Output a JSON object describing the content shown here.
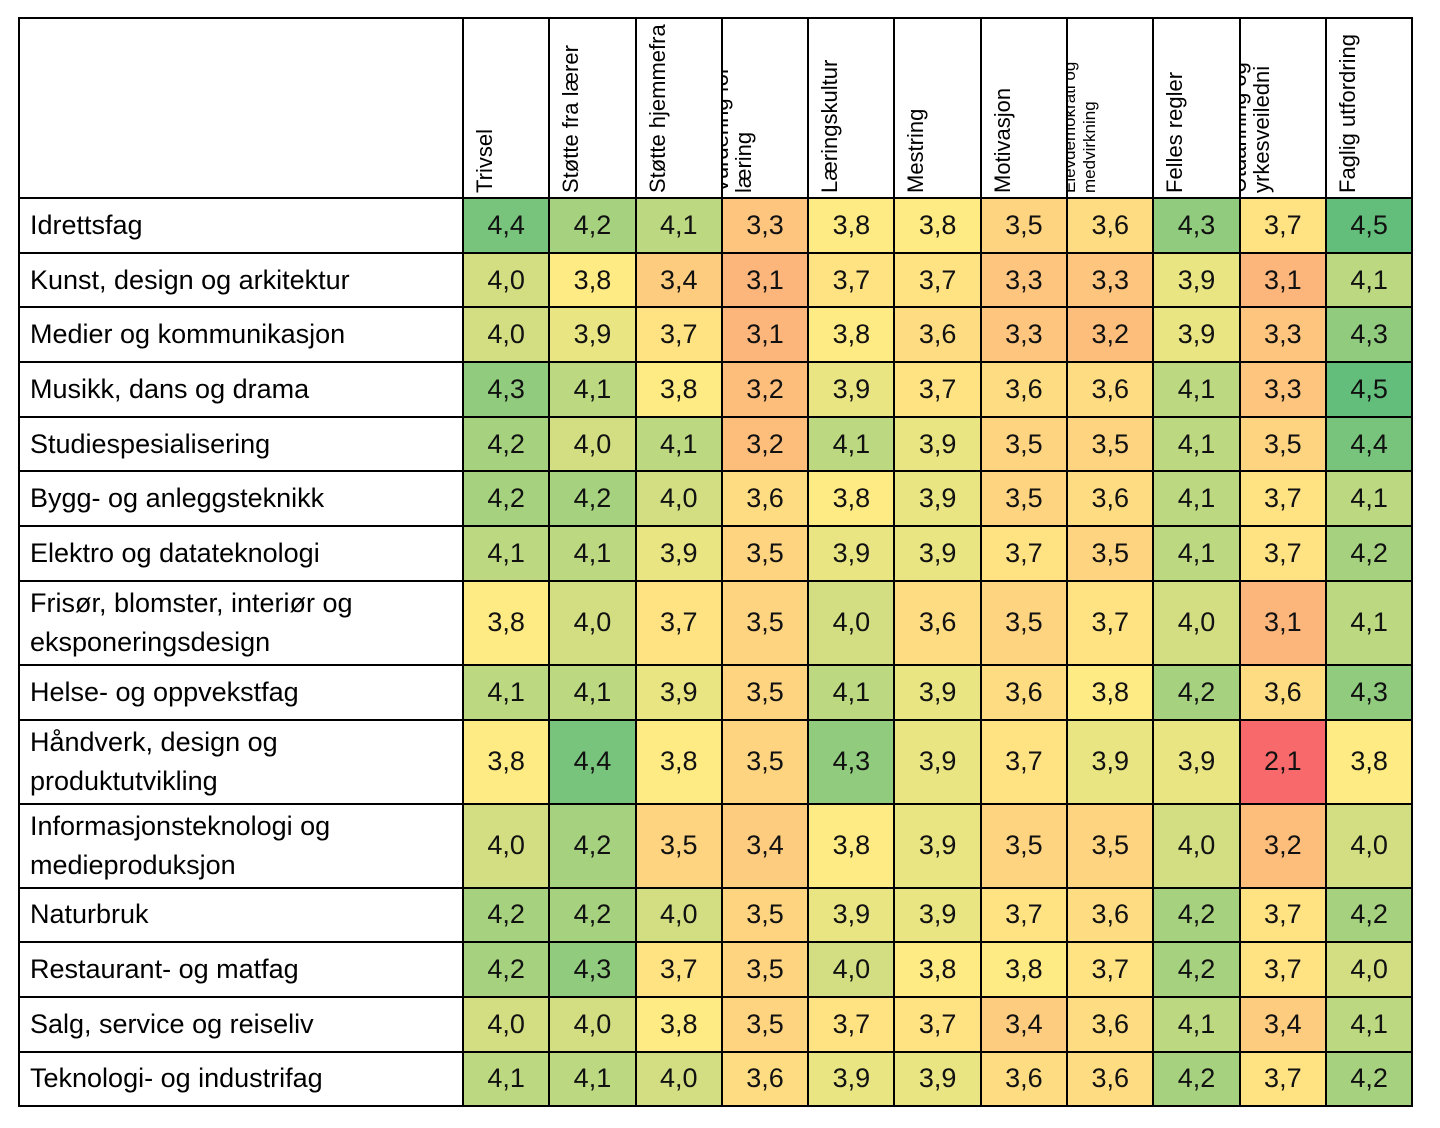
{
  "chart_data": {
    "type": "heatmap",
    "columns": [
      "Trivsel",
      "Støtte fra lærer",
      "Støtte hjemmefra",
      "Vurdering for læring",
      "Læringskultur",
      "Mestring",
      "Motivasjon",
      "Elevdemokrati og medvirkning",
      "Felles regler",
      "Utdanning og yrkesveiledni",
      "Faglig utfordring"
    ],
    "rows": [
      {
        "label": "Idrettsfag",
        "values": [
          4.4,
          4.2,
          4.1,
          3.3,
          3.8,
          3.8,
          3.5,
          3.6,
          4.3,
          3.7,
          4.5
        ]
      },
      {
        "label": "Kunst, design og arkitektur",
        "values": [
          4.0,
          3.8,
          3.4,
          3.1,
          3.7,
          3.7,
          3.3,
          3.3,
          3.9,
          3.1,
          4.1
        ]
      },
      {
        "label": "Medier og kommunikasjon",
        "values": [
          4.0,
          3.9,
          3.7,
          3.1,
          3.8,
          3.6,
          3.3,
          3.2,
          3.9,
          3.3,
          4.3
        ]
      },
      {
        "label": "Musikk, dans og drama",
        "values": [
          4.3,
          4.1,
          3.8,
          3.2,
          3.9,
          3.7,
          3.6,
          3.6,
          4.1,
          3.3,
          4.5
        ]
      },
      {
        "label": "Studiespesialisering",
        "values": [
          4.2,
          4.0,
          4.1,
          3.2,
          4.1,
          3.9,
          3.5,
          3.5,
          4.1,
          3.5,
          4.4
        ]
      },
      {
        "label": "Bygg- og anleggsteknikk",
        "values": [
          4.2,
          4.2,
          4.0,
          3.6,
          3.8,
          3.9,
          3.5,
          3.6,
          4.1,
          3.7,
          4.1
        ]
      },
      {
        "label": "Elektro og datateknologi",
        "values": [
          4.1,
          4.1,
          3.9,
          3.5,
          3.9,
          3.9,
          3.7,
          3.5,
          4.1,
          3.7,
          4.2
        ]
      },
      {
        "label": "Frisør, blomster, interiør og eksponeringsdesign",
        "values": [
          3.8,
          4.0,
          3.7,
          3.5,
          4.0,
          3.6,
          3.5,
          3.7,
          4.0,
          3.1,
          4.1
        ]
      },
      {
        "label": "Helse- og oppvekstfag",
        "values": [
          4.1,
          4.1,
          3.9,
          3.5,
          4.1,
          3.9,
          3.6,
          3.8,
          4.2,
          3.6,
          4.3
        ]
      },
      {
        "label": "Håndverk, design og produktutvikling",
        "values": [
          3.8,
          4.4,
          3.8,
          3.5,
          4.3,
          3.9,
          3.7,
          3.9,
          3.9,
          2.1,
          3.8
        ]
      },
      {
        "label": "Informasjonsteknologi og medieproduksjon",
        "values": [
          4.0,
          4.2,
          3.5,
          3.4,
          3.8,
          3.9,
          3.5,
          3.5,
          4.0,
          3.2,
          4.0
        ]
      },
      {
        "label": "Naturbruk",
        "values": [
          4.2,
          4.2,
          4.0,
          3.5,
          3.9,
          3.9,
          3.7,
          3.6,
          4.2,
          3.7,
          4.2
        ]
      },
      {
        "label": "Restaurant- og matfag",
        "values": [
          4.2,
          4.3,
          3.7,
          3.5,
          4.0,
          3.8,
          3.8,
          3.7,
          4.2,
          3.7,
          4.0
        ]
      },
      {
        "label": "Salg, service og reiseliv",
        "values": [
          4.0,
          4.0,
          3.8,
          3.5,
          3.7,
          3.7,
          3.4,
          3.6,
          4.1,
          3.4,
          4.1
        ]
      },
      {
        "label": "Teknologi- og industrifag",
        "values": [
          4.1,
          4.1,
          4.0,
          3.6,
          3.9,
          3.9,
          3.6,
          3.6,
          4.2,
          3.7,
          4.2
        ]
      }
    ],
    "decimal_separator": ",",
    "color_scale": {
      "low": "#f8696b",
      "mid": "#ffeb84",
      "high": "#63be7b",
      "min": 2.1,
      "max": 4.5
    }
  }
}
